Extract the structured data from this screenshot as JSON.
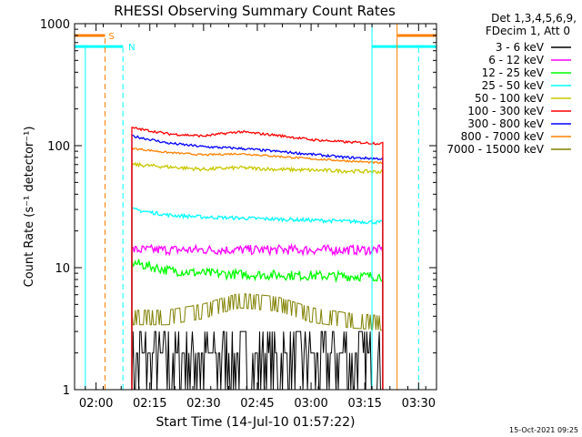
{
  "chart_data": {
    "type": "line",
    "title": "RHESSI Observing Summary Count Rates",
    "xlabel": "Start Time (14-Jul-10 01:57:22)",
    "ylabel": "Count Rate (s⁻¹ detector⁻¹)",
    "yscale": "log",
    "ylim": [
      1,
      1000
    ],
    "xlim_minutes": [
      -3,
      98
    ],
    "x_tick_labels": [
      "02:00",
      "02:15",
      "02:30",
      "02:45",
      "03:00",
      "03:15",
      "03:30"
    ],
    "y_tick_labels": [
      "1",
      "10",
      "100",
      "1000"
    ],
    "legend_header": [
      "Det 1,3,4,5,6,9,",
      "FDecim 1, Att 0"
    ],
    "data_window_minutes": [
      13,
      83
    ],
    "series": [
      {
        "name": "3 - 6 keV",
        "color": "#000000",
        "level": [
          1.8,
          1.8,
          1.8,
          1.8,
          1.8,
          1.8,
          1.8,
          1.8
        ],
        "noise": 0.45
      },
      {
        "name": "6 - 12 keV",
        "color": "#ff00ff",
        "level": [
          14,
          14,
          14,
          14,
          14,
          14,
          14,
          14
        ],
        "noise": 0.08
      },
      {
        "name": "12 - 25 keV",
        "color": "#00ff00",
        "level": [
          11,
          9.5,
          9,
          8.8,
          8.7,
          8.6,
          8.5,
          8.5
        ],
        "noise": 0.08
      },
      {
        "name": "25 - 50 keV",
        "color": "#00ffff",
        "level": [
          30,
          27,
          26,
          25.5,
          25,
          24.5,
          24,
          23.5
        ],
        "noise": 0.03
      },
      {
        "name": "50 - 100 keV",
        "color": "#c8c800",
        "level": [
          70,
          67,
          64,
          66,
          64,
          63,
          62,
          61
        ],
        "noise": 0.03
      },
      {
        "name": "100 - 300 keV",
        "color": "#ff0000",
        "level": [
          140,
          125,
          120,
          130,
          122,
          112,
          107,
          104
        ],
        "noise": 0.02
      },
      {
        "name": "300 - 800 keV",
        "color": "#0000ff",
        "level": [
          120,
          105,
          98,
          95,
          90,
          85,
          80,
          78
        ],
        "noise": 0.02
      },
      {
        "name": "800 - 7000 keV",
        "color": "#ff8000",
        "level": [
          95,
          88,
          84,
          86,
          82,
          78,
          75,
          72
        ],
        "noise": 0.015
      },
      {
        "name": "7000 - 15000 keV",
        "color": "#808000",
        "level": [
          4,
          4,
          4.5,
          5.5,
          5.2,
          4.2,
          3.8,
          3.6
        ],
        "noise": 0.2
      }
    ],
    "annotations": [
      {
        "text": "S",
        "color": "#ff8000"
      },
      {
        "text": "N",
        "color": "#00ffff"
      }
    ],
    "footer_stamp": "15-Oct-2021 09:25"
  }
}
